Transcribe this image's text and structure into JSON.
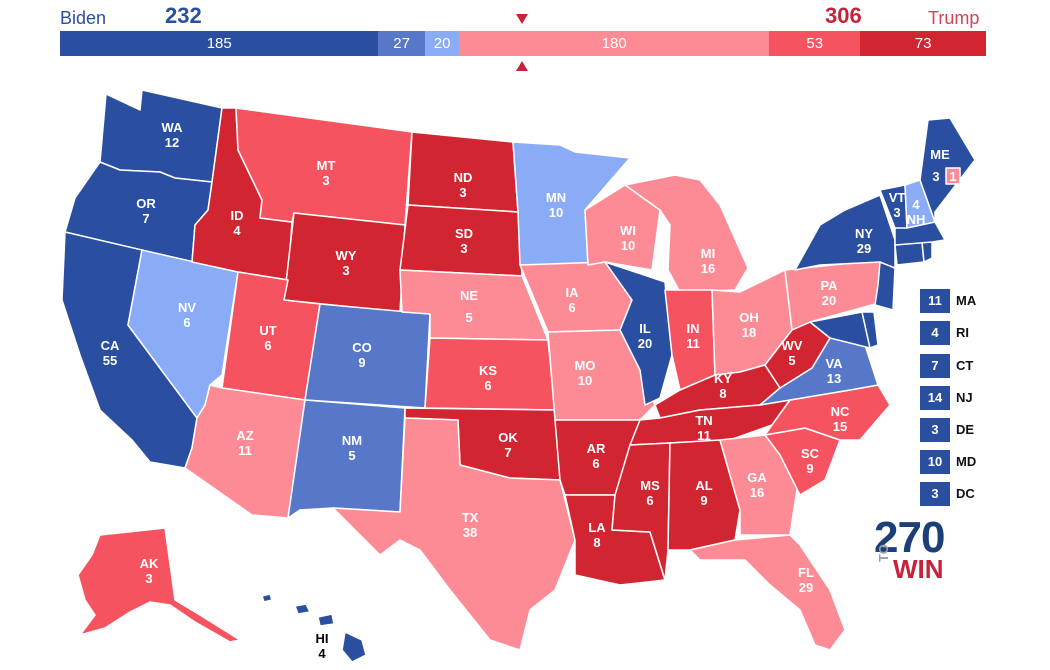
{
  "header": {
    "left_name": "Biden",
    "left_total": "232",
    "right_name": "Trump",
    "right_total": "306"
  },
  "bar_segments": [
    {
      "label": "185",
      "value": 185,
      "color": "#2a4fa0"
    },
    {
      "label": "27",
      "value": 27,
      "color": "#5778c9"
    },
    {
      "label": "20",
      "value": 20,
      "color": "#8aabf5"
    },
    {
      "label": "180",
      "value": 180,
      "color": "#fd8b95"
    },
    {
      "label": "53",
      "value": 53,
      "color": "#f55360"
    },
    {
      "label": "73",
      "value": 73,
      "color": "#d22532"
    }
  ],
  "colors": {
    "safe_dem": "#2a4fa0",
    "likely_dem": "#5778c9",
    "lean_dem": "#8aabf5",
    "lean_rep": "#fd8b95",
    "likely_rep": "#f55360",
    "safe_rep": "#d22532"
  },
  "states": {
    "WA": {
      "abbr": "WA",
      "ev": "12"
    },
    "OR": {
      "abbr": "OR",
      "ev": "7"
    },
    "CA": {
      "abbr": "CA",
      "ev": "55"
    },
    "NV": {
      "abbr": "NV",
      "ev": "6"
    },
    "ID": {
      "abbr": "ID",
      "ev": "4"
    },
    "MT": {
      "abbr": "MT",
      "ev": "3"
    },
    "WY": {
      "abbr": "WY",
      "ev": "3"
    },
    "UT": {
      "abbr": "UT",
      "ev": "6"
    },
    "AZ": {
      "abbr": "AZ",
      "ev": "11"
    },
    "CO": {
      "abbr": "CO",
      "ev": "9"
    },
    "NM": {
      "abbr": "NM",
      "ev": "5"
    },
    "ND": {
      "abbr": "ND",
      "ev": "3"
    },
    "SD": {
      "abbr": "SD",
      "ev": "3"
    },
    "NE": {
      "abbr": "NE",
      "ev": "5"
    },
    "KS": {
      "abbr": "KS",
      "ev": "6"
    },
    "OK": {
      "abbr": "OK",
      "ev": "7"
    },
    "TX": {
      "abbr": "TX",
      "ev": "38"
    },
    "MN": {
      "abbr": "MN",
      "ev": "10"
    },
    "IA": {
      "abbr": "IA",
      "ev": "6"
    },
    "MO": {
      "abbr": "MO",
      "ev": "10"
    },
    "AR": {
      "abbr": "AR",
      "ev": "6"
    },
    "LA": {
      "abbr": "LA",
      "ev": "8"
    },
    "WI": {
      "abbr": "WI",
      "ev": "10"
    },
    "IL": {
      "abbr": "IL",
      "ev": "20"
    },
    "MS": {
      "abbr": "MS",
      "ev": "6"
    },
    "MI": {
      "abbr": "MI",
      "ev": "16"
    },
    "IN": {
      "abbr": "IN",
      "ev": "11"
    },
    "KY": {
      "abbr": "KY",
      "ev": "8"
    },
    "TN": {
      "abbr": "TN",
      "ev": "11"
    },
    "AL": {
      "abbr": "AL",
      "ev": "9"
    },
    "OH": {
      "abbr": "OH",
      "ev": "18"
    },
    "WV": {
      "abbr": "WV",
      "ev": "5"
    },
    "GA": {
      "abbr": "GA",
      "ev": "16"
    },
    "FL": {
      "abbr": "FL",
      "ev": "29"
    },
    "SC": {
      "abbr": "SC",
      "ev": "9"
    },
    "NC": {
      "abbr": "NC",
      "ev": "15"
    },
    "VA": {
      "abbr": "VA",
      "ev": "13"
    },
    "PA": {
      "abbr": "PA",
      "ev": "20"
    },
    "NY": {
      "abbr": "NY",
      "ev": "29"
    },
    "VT": {
      "abbr": "VT",
      "ev": "3"
    },
    "NH": {
      "abbr": "NH",
      "ev": "4"
    },
    "ME": {
      "abbr": "ME",
      "ev": "3",
      "district_ev": "1"
    },
    "AK": {
      "abbr": "AK",
      "ev": "3"
    },
    "HI": {
      "abbr": "HI",
      "ev": "4"
    }
  },
  "small_states": [
    {
      "abbr": "MA",
      "ev": "11"
    },
    {
      "abbr": "RI",
      "ev": "4"
    },
    {
      "abbr": "CT",
      "ev": "7"
    },
    {
      "abbr": "NJ",
      "ev": "14"
    },
    {
      "abbr": "DE",
      "ev": "3"
    },
    {
      "abbr": "MD",
      "ev": "10"
    },
    {
      "abbr": "DC",
      "ev": "3"
    }
  ],
  "logo": {
    "number": "270",
    "to": "TO",
    "win": "WIN"
  }
}
